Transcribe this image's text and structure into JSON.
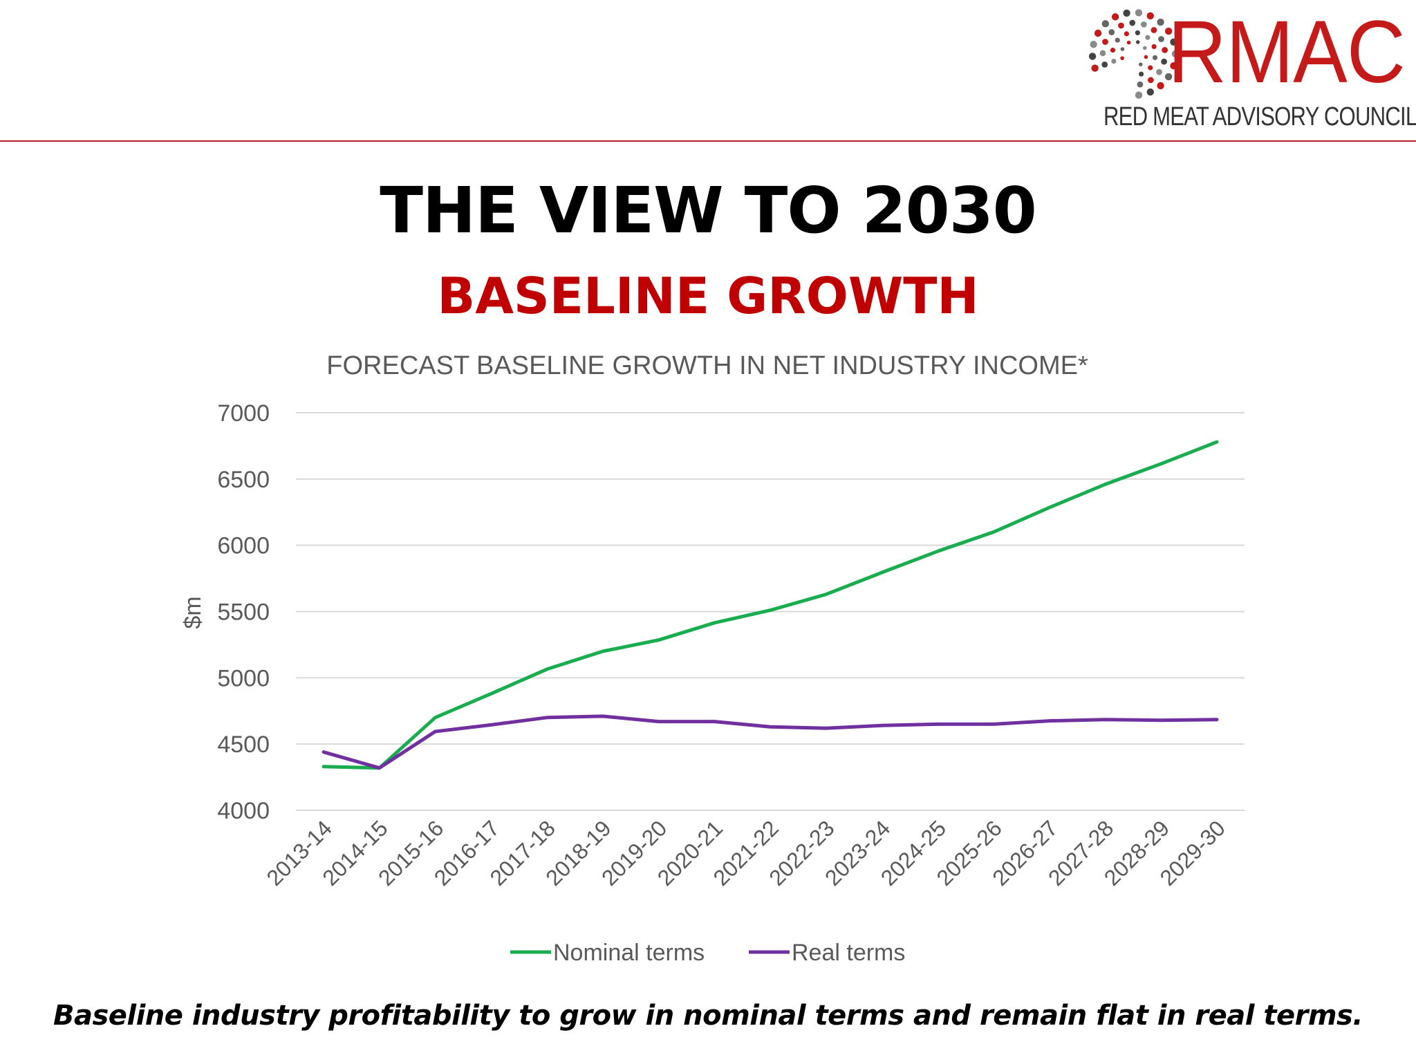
{
  "header": {
    "logo_name": "RMAC",
    "logo_tagline": "RED MEAT ADVISORY COUNCIL",
    "brand_color": "#c41a1a",
    "rule_color": "#b22030"
  },
  "slide": {
    "title": "THE VIEW TO 2030",
    "subtitle": "BASELINE GROWTH",
    "subtitle_color": "#c00000",
    "footnote": "Baseline industry profitability to grow in nominal terms and remain flat in real terms."
  },
  "chart_data": {
    "type": "line",
    "title": "FORECAST BASELINE GROWTH IN NET INDUSTRY INCOME*",
    "xlabel": "",
    "ylabel": "$m",
    "ylim": [
      4000,
      7000
    ],
    "yticks": [
      4000,
      4500,
      5000,
      5500,
      6000,
      6500,
      7000
    ],
    "grid": true,
    "legend_position": "bottom",
    "categories": [
      "2013-14",
      "2014-15",
      "2015-16",
      "2016-17",
      "2017-18",
      "2018-19",
      "2019-20",
      "2020-21",
      "2021-22",
      "2022-23",
      "2023-24",
      "2024-25",
      "2025-26",
      "2026-27",
      "2027-28",
      "2028-29",
      "2029-30"
    ],
    "series": [
      {
        "name": "Nominal terms",
        "color": "#1aad50",
        "values": [
          4330,
          4320,
          4700,
          4880,
          5065,
          5200,
          5285,
          5415,
          5510,
          5630,
          5795,
          5955,
          6100,
          6285,
          6460,
          6615,
          6780
        ]
      },
      {
        "name": "Real terms",
        "color": "#7030a0",
        "values": [
          4440,
          4320,
          4595,
          4645,
          4700,
          4710,
          4670,
          4670,
          4630,
          4620,
          4640,
          4650,
          4650,
          4675,
          4685,
          4680,
          4685
        ]
      }
    ]
  }
}
